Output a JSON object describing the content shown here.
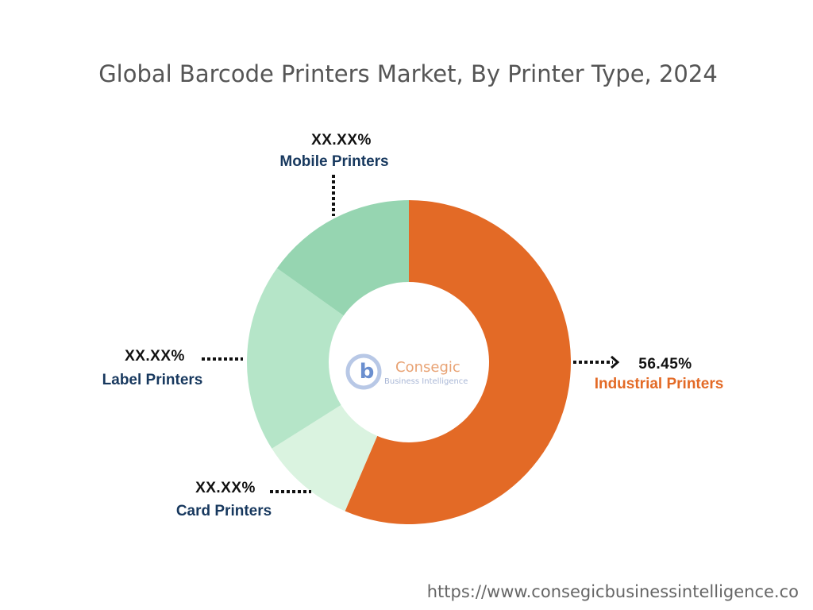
{
  "chart_data": {
    "type": "donut",
    "title": "Global Barcode Printers Market, By Printer Type, 2024",
    "categories": [
      "Industrial Printers",
      "Card Printers",
      "Label Printers",
      "Mobile Printers"
    ],
    "values": [
      56.45,
      9.6,
      18.8,
      15.15
    ],
    "value_labels": [
      "56.45%",
      "XX.XX%",
      "XX.XX%",
      "XX.XX%"
    ],
    "colors": [
      "#e36a26",
      "#daf3e0",
      "#b5e5c8",
      "#96d5b1"
    ]
  },
  "logo": {
    "name": "Consegic",
    "tagline": "Business Intelligence"
  },
  "footer": {
    "url": "https://www.consegicbusinessintelligence.co"
  }
}
